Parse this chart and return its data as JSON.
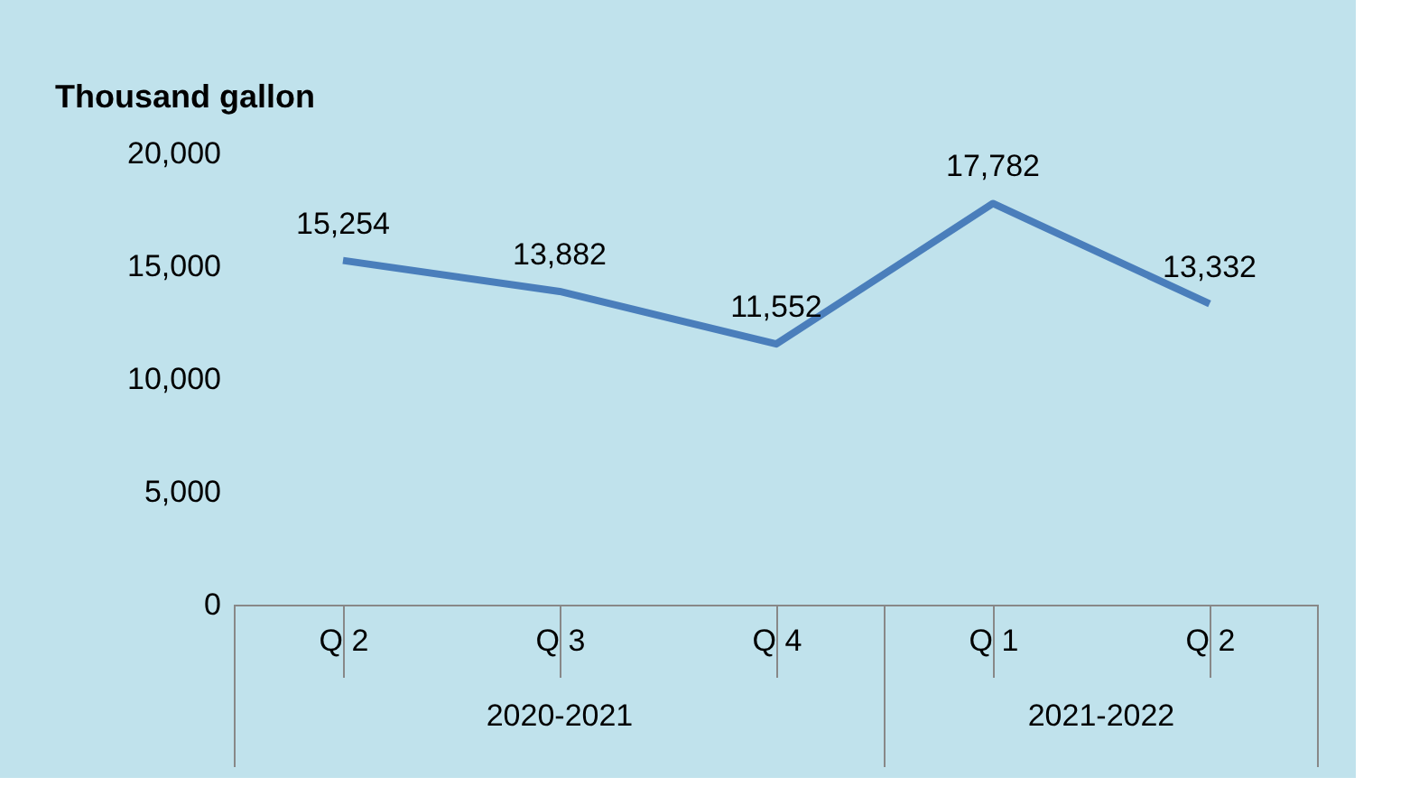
{
  "chart_data": {
    "type": "line",
    "ylabel": "Thousand gallon",
    "categories": [
      "Q 2",
      "Q 3",
      "Q 4",
      "Q 1",
      "Q 2"
    ],
    "series": [
      {
        "color": "#4a7ebb",
        "values": [
          15254,
          13882,
          11552,
          17782,
          13332
        ],
        "value_labels": [
          "15,254",
          "13,882",
          "11,552",
          "17,782",
          "13,332"
        ]
      }
    ],
    "ylim": [
      0,
      20000
    ],
    "yticks": [
      0,
      {
        "value": 5000,
        "label": "5,000"
      },
      {
        "value": 10000,
        "label": "10,000"
      },
      {
        "value": 15000,
        "label": "15,000"
      },
      {
        "value": 20000,
        "label": "20,000"
      }
    ],
    "grid": false,
    "marker": "none",
    "line_style": "solid",
    "annotations": [
      "2020-2021",
      "2021-2022"
    ]
  }
}
